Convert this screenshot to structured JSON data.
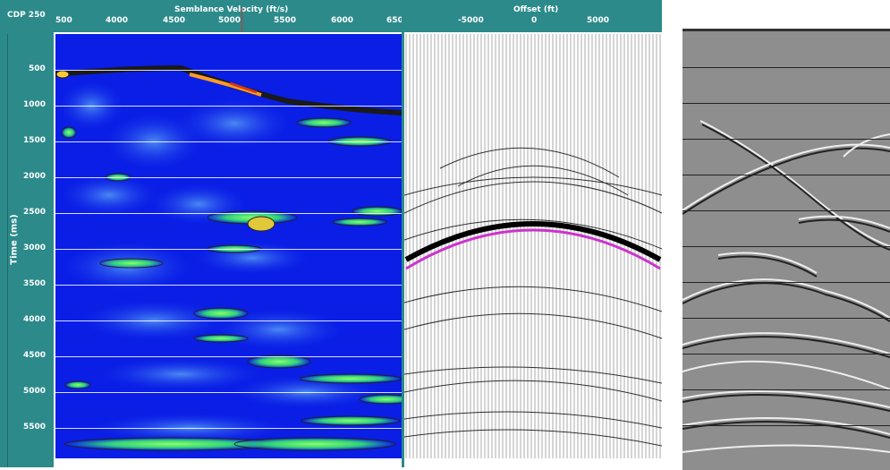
{
  "cdp_label": "CDP 250",
  "semblance": {
    "title": "Semblance Velocity (ft/s)",
    "x_ticks": [
      "500",
      "4000",
      "4500",
      "5000",
      "5500",
      "6000",
      "650"
    ]
  },
  "gather": {
    "title": "Offset (ft)",
    "x_ticks": [
      "-5000",
      "0",
      "5000"
    ]
  },
  "time_axis": {
    "label": "Time (ms)",
    "ticks": [
      "500",
      "1000",
      "1500",
      "2000",
      "2500",
      "3000",
      "3500",
      "4000",
      "4500",
      "5000",
      "5500"
    ]
  },
  "colors": {
    "frame": "#2c8a8a",
    "semblance_bg": "#0a1ee6",
    "moveout_curve": "#000000",
    "moveout_pick": "#cc33cc"
  }
}
